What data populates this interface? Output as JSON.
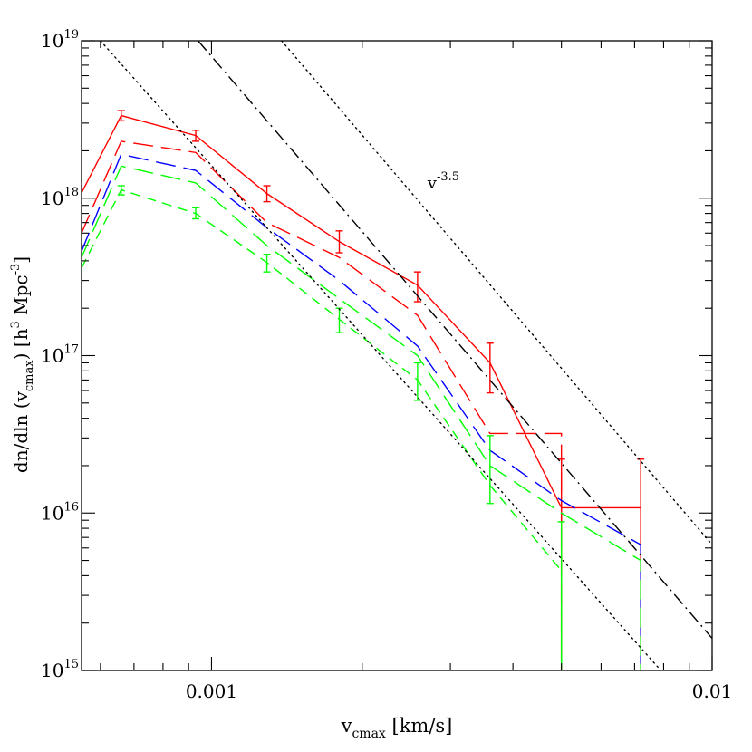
{
  "chart_data": {
    "type": "line",
    "xlabel": {
      "base": "v",
      "sub": "cmax",
      "unit": " [km/s]"
    },
    "ylabel": {
      "pre": "dn/dln (v",
      "sub": "cmax",
      "post": ") [h",
      "sup1": "3",
      "mid": " Mpc",
      "sup2": "-3",
      "end": "]"
    },
    "xscale": "log",
    "yscale": "log",
    "xlim": [
      0.00055,
      0.01
    ],
    "ylim": [
      1000000000000000.0,
      1e+19
    ],
    "x_ticks": [
      {
        "value": 0.001,
        "label": "0.001"
      },
      {
        "value": 0.01,
        "label": "0.01"
      }
    ],
    "y_ticks": [
      {
        "value": 1000000000000000.0,
        "base": "10",
        "exp": "15"
      },
      {
        "value": 1e+16,
        "base": "10",
        "exp": "16"
      },
      {
        "value": 1e+17,
        "base": "10",
        "exp": "17"
      },
      {
        "value": 1e+18,
        "base": "10",
        "exp": "18"
      },
      {
        "value": 1e+19,
        "base": "10",
        "exp": "19"
      }
    ],
    "annotation": {
      "base": "v",
      "exp": "-3.5",
      "x": 0.0027,
      "y": 1.15e+18
    },
    "series": [
      {
        "style": "solid",
        "color": "#ff0000",
        "x": [
          0.00055,
          0.00066,
          0.00093,
          0.00129,
          0.0018,
          0.00258,
          0.0036,
          0.005,
          0.005,
          0.0072,
          0.0072
        ],
        "y": [
          1.08e+18,
          3.35e+18,
          2.5e+18,
          1.07e+18,
          5.3e+17,
          2.8e+17,
          9e+16,
          1.08e+16,
          1.08e+16,
          1.08e+16,
          1000000000000000.0
        ],
        "errorbars": [
          {
            "x": 0.00066,
            "lo": 3.1e+18,
            "hi": 3.6e+18
          },
          {
            "x": 0.00093,
            "lo": 2.3e+18,
            "hi": 2.7e+18
          },
          {
            "x": 0.00129,
            "lo": 9.5e+17,
            "hi": 1.2e+18
          },
          {
            "x": 0.0018,
            "lo": 4.5e+17,
            "hi": 6.2e+17
          },
          {
            "x": 0.00258,
            "lo": 2.2e+17,
            "hi": 3.4e+17
          },
          {
            "x": 0.0036,
            "lo": 5.8e+16,
            "hi": 1.2e+17
          },
          {
            "x": 0.005,
            "lo": 1000000000000000.0,
            "hi": 2.2e+16
          },
          {
            "x": 0.0072,
            "lo": 1000000000000000.0,
            "hi": 2.2e+16
          }
        ]
      },
      {
        "style": "long-dash",
        "color": "#ff0000",
        "x": [
          0.00055,
          0.00066,
          0.00093,
          0.00129,
          0.0018,
          0.00258,
          0.0036,
          0.0036,
          0.005,
          0.005
        ],
        "y": [
          6e+17,
          2.3e+18,
          1.95e+18,
          7e+17,
          4.2e+17,
          1.8e+17,
          3.2e+16,
          3.2e+16,
          3.2e+16,
          1000000000000000.0
        ],
        "errorbars": []
      },
      {
        "style": "long-dash",
        "color": "#0000ff",
        "x": [
          0.00055,
          0.00066,
          0.00093,
          0.00129,
          0.0018,
          0.00258,
          0.0036,
          0.005,
          0.0072,
          0.0072
        ],
        "y": [
          4.6e+17,
          1.9e+18,
          1.5e+18,
          6.5e+17,
          3e+17,
          1.15e+17,
          2.5e+16,
          1.2e+16,
          6300000000000000.0,
          1000000000000000.0
        ],
        "errorbars": []
      },
      {
        "style": "long-dash",
        "color": "#00ff00",
        "x": [
          0.00055,
          0.00066,
          0.00093,
          0.00129,
          0.0018,
          0.00258,
          0.0036,
          0.005,
          0.0072,
          0.0072
        ],
        "y": [
          4.2e+17,
          1.6e+18,
          1.25e+18,
          5e+17,
          2.3e+17,
          1e+17,
          2e+16,
          1e+16,
          5000000000000000.0,
          1000000000000000.0
        ],
        "errorbars": []
      },
      {
        "style": "short-dash",
        "color": "#00ff00",
        "x": [
          0.00055,
          0.00066,
          0.00093,
          0.00129,
          0.0018,
          0.00258,
          0.0036,
          0.005,
          0.005
        ],
        "y": [
          3.6e+17,
          1.13e+18,
          8e+17,
          3.9e+17,
          1.7e+17,
          7e+16,
          1.5e+16,
          4300000000000000.0,
          1000000000000000.0
        ],
        "errorbars": [
          {
            "x": 0.00066,
            "lo": 1.05e+18,
            "hi": 1.2e+18
          },
          {
            "x": 0.00093,
            "lo": 7.4e+17,
            "hi": 8.7e+17
          },
          {
            "x": 0.00129,
            "lo": 3.4e+17,
            "hi": 4.4e+17
          },
          {
            "x": 0.0018,
            "lo": 1.4e+17,
            "hi": 2e+17
          },
          {
            "x": 0.00258,
            "lo": 5.2e+16,
            "hi": 9e+16
          },
          {
            "x": 0.0036,
            "lo": 1.15e+16,
            "hi": 3.1e+16
          },
          {
            "x": 0.005,
            "lo": 1000000000000000.0,
            "hi": 8800000000000000.0
          }
        ]
      },
      {
        "style": "dotted",
        "color": "#000000",
        "x": [
          0.0006,
          0.0079
        ],
        "y": [
          1e+19,
          1000000000000000.0
        ],
        "errorbars": []
      },
      {
        "style": "dotted",
        "color": "#000000",
        "x": [
          0.00138,
          0.01
        ],
        "y": [
          1e+19,
          6300000000000000.0
        ],
        "errorbars": []
      },
      {
        "style": "dash-dot",
        "color": "#000000",
        "x": [
          0.00094,
          0.01
        ],
        "y": [
          1e+19,
          1600000000000000.0
        ],
        "errorbars": []
      }
    ]
  }
}
